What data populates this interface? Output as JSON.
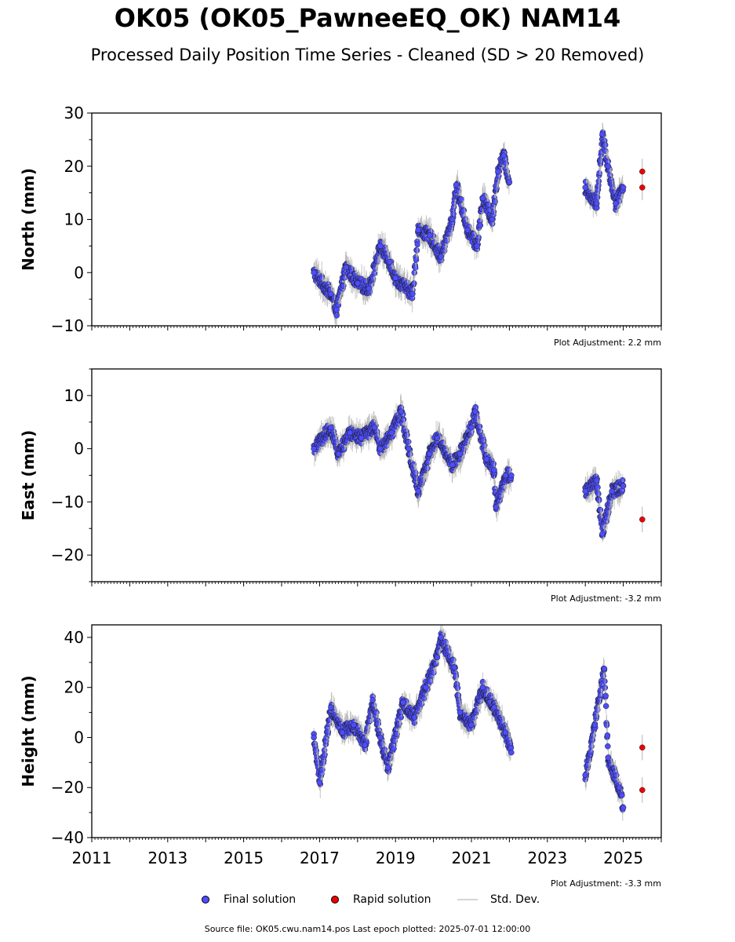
{
  "title": "OK05 (OK05_PawneeEQ_OK) NAM14",
  "subtitle": "Processed Daily Position Time Series - Cleaned (SD > 20 Removed)",
  "legend": {
    "final": "Final solution",
    "rapid": "Rapid solution",
    "std": "Std. Dev."
  },
  "colors": {
    "final": "#4d4dff",
    "rapid": "#ee0000",
    "std": "#b4b4b4",
    "edge": "#1a1a1a"
  },
  "source": "Source file: OK05.cwu.nam14.pos  Last epoch plotted: 2025-07-01 12:00:00",
  "chart_data": [
    {
      "type": "scatter",
      "ylabel": "North (mm)",
      "ylim": [
        -10,
        30
      ],
      "yticks": [
        -10,
        0,
        10,
        20,
        30
      ],
      "adjustment": "Plot Adjustment: 2.2 mm",
      "xlim": [
        2011,
        2026
      ],
      "xticks": [
        2017,
        2019,
        2021,
        2023,
        2025
      ],
      "grid": false,
      "final_solution": [
        {
          "x": 2016.85,
          "y": 0
        },
        {
          "x": 2017.3,
          "y": -4
        },
        {
          "x": 2017.45,
          "y": -7
        },
        {
          "x": 2017.7,
          "y": 1
        },
        {
          "x": 2018.0,
          "y": -2
        },
        {
          "x": 2018.3,
          "y": -3
        },
        {
          "x": 2018.6,
          "y": 5
        },
        {
          "x": 2018.85,
          "y": 2
        },
        {
          "x": 2019.0,
          "y": -1
        },
        {
          "x": 2019.45,
          "y": -4
        },
        {
          "x": 2019.6,
          "y": 8
        },
        {
          "x": 2019.9,
          "y": 7
        },
        {
          "x": 2020.2,
          "y": 3
        },
        {
          "x": 2020.5,
          "y": 10
        },
        {
          "x": 2020.6,
          "y": 16.5
        },
        {
          "x": 2020.9,
          "y": 8
        },
        {
          "x": 2021.15,
          "y": 5
        },
        {
          "x": 2021.3,
          "y": 14
        },
        {
          "x": 2021.55,
          "y": 10
        },
        {
          "x": 2021.7,
          "y": 19
        },
        {
          "x": 2021.85,
          "y": 22
        },
        {
          "x": 2022.0,
          "y": 17
        },
        {
          "x": 2024.0,
          "y": 16
        },
        {
          "x": 2024.3,
          "y": 13
        },
        {
          "x": 2024.45,
          "y": 26
        },
        {
          "x": 2024.6,
          "y": 20
        },
        {
          "x": 2024.8,
          "y": 13
        },
        {
          "x": 2025.0,
          "y": 16
        }
      ],
      "rapid_solution": [
        {
          "x": 2025.5,
          "y": 19
        },
        {
          "x": 2025.5,
          "y": 16
        }
      ]
    },
    {
      "type": "scatter",
      "ylabel": "East (mm)",
      "ylim": [
        -25,
        15
      ],
      "yticks": [
        -20,
        -10,
        0,
        10
      ],
      "adjustment": "Plot Adjustment: -3.2 mm",
      "xlim": [
        2011,
        2026
      ],
      "xticks": [
        2017,
        2019,
        2021,
        2023,
        2025
      ],
      "grid": false,
      "final_solution": [
        {
          "x": 2016.85,
          "y": 0
        },
        {
          "x": 2017.3,
          "y": 4
        },
        {
          "x": 2017.5,
          "y": -1
        },
        {
          "x": 2017.8,
          "y": 3
        },
        {
          "x": 2018.1,
          "y": 2
        },
        {
          "x": 2018.45,
          "y": 4
        },
        {
          "x": 2018.6,
          "y": 0
        },
        {
          "x": 2018.9,
          "y": 3
        },
        {
          "x": 2019.15,
          "y": 7
        },
        {
          "x": 2019.35,
          "y": 0
        },
        {
          "x": 2019.6,
          "y": -8
        },
        {
          "x": 2019.9,
          "y": -1
        },
        {
          "x": 2020.1,
          "y": 2
        },
        {
          "x": 2020.5,
          "y": -3
        },
        {
          "x": 2020.7,
          "y": -1
        },
        {
          "x": 2021.0,
          "y": 4
        },
        {
          "x": 2021.1,
          "y": 7
        },
        {
          "x": 2021.4,
          "y": -2
        },
        {
          "x": 2021.6,
          "y": -4
        },
        {
          "x": 2021.65,
          "y": -11
        },
        {
          "x": 2021.9,
          "y": -5
        },
        {
          "x": 2022.05,
          "y": -5
        },
        {
          "x": 2024.0,
          "y": -8
        },
        {
          "x": 2024.3,
          "y": -6
        },
        {
          "x": 2024.45,
          "y": -16
        },
        {
          "x": 2024.7,
          "y": -8
        },
        {
          "x": 2025.0,
          "y": -7
        }
      ],
      "rapid_solution": [
        {
          "x": 2025.5,
          "y": -13.3
        }
      ]
    },
    {
      "type": "scatter",
      "ylabel": "Height (mm)",
      "ylim": [
        -40,
        45
      ],
      "yticks": [
        -40,
        -20,
        0,
        20,
        40
      ],
      "adjustment": "Plot Adjustment: -3.3 mm",
      "xlim": [
        2011,
        2026
      ],
      "xticks": [
        2011,
        2013,
        2015,
        2017,
        2019,
        2021,
        2023,
        2025
      ],
      "xticklabels": [
        "2011",
        "2013",
        "2015",
        "2017",
        "2019",
        "2021",
        "2023",
        "2025"
      ],
      "grid": false,
      "final_solution": [
        {
          "x": 2016.85,
          "y": 0
        },
        {
          "x": 2017.0,
          "y": -18
        },
        {
          "x": 2017.3,
          "y": 12
        },
        {
          "x": 2017.6,
          "y": 2
        },
        {
          "x": 2017.9,
          "y": 5
        },
        {
          "x": 2018.2,
          "y": -3
        },
        {
          "x": 2018.4,
          "y": 15
        },
        {
          "x": 2018.6,
          "y": 0
        },
        {
          "x": 2018.8,
          "y": -12
        },
        {
          "x": 2019.2,
          "y": 14
        },
        {
          "x": 2019.5,
          "y": 8
        },
        {
          "x": 2019.8,
          "y": 20
        },
        {
          "x": 2020.1,
          "y": 32
        },
        {
          "x": 2020.2,
          "y": 40
        },
        {
          "x": 2020.55,
          "y": 28
        },
        {
          "x": 2020.7,
          "y": 10
        },
        {
          "x": 2021.0,
          "y": 5
        },
        {
          "x": 2021.3,
          "y": 20
        },
        {
          "x": 2021.6,
          "y": 12
        },
        {
          "x": 2021.9,
          "y": 2
        },
        {
          "x": 2022.05,
          "y": -6
        },
        {
          "x": 2024.0,
          "y": -15
        },
        {
          "x": 2024.25,
          "y": 5
        },
        {
          "x": 2024.5,
          "y": 27.5
        },
        {
          "x": 2024.6,
          "y": -8
        },
        {
          "x": 2024.9,
          "y": -20
        },
        {
          "x": 2025.0,
          "y": -28
        }
      ],
      "rapid_solution": [
        {
          "x": 2025.5,
          "y": -4
        },
        {
          "x": 2025.5,
          "y": -21
        }
      ]
    }
  ]
}
